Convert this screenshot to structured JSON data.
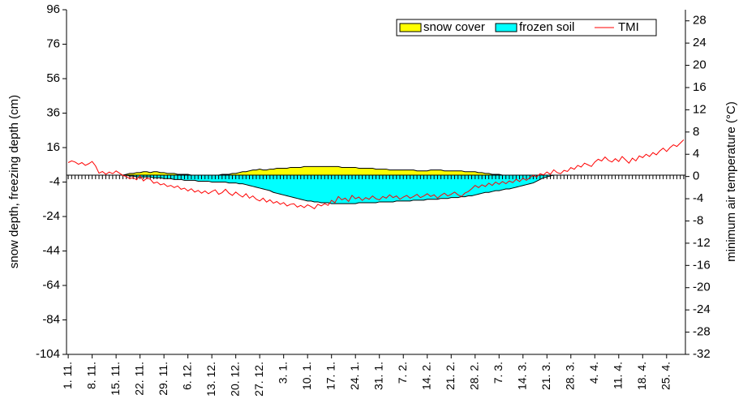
{
  "chart_data": {
    "type": "area",
    "y_label": "snow depth, freezing depth (cm)",
    "y2_label": "minimum air temperature (°C)",
    "ylim": [
      -104,
      96
    ],
    "yticks": [
      -104,
      -84,
      -64,
      -44,
      -24,
      -4,
      16,
      36,
      56,
      76,
      96
    ],
    "y2lim": [
      -32,
      30
    ],
    "y2ticks": [
      -32,
      -28,
      -24,
      -20,
      -16,
      -12,
      -8,
      -4,
      0,
      4,
      8,
      12,
      16,
      20,
      24,
      28
    ],
    "legend": "top-right",
    "categories": [
      "1. 11.",
      null,
      null,
      null,
      null,
      null,
      null,
      "8. 11.",
      null,
      null,
      null,
      null,
      null,
      null,
      "15. 11.",
      null,
      null,
      null,
      null,
      null,
      null,
      "22. 11.",
      null,
      null,
      null,
      null,
      null,
      null,
      "29. 11.",
      null,
      null,
      null,
      null,
      null,
      null,
      "6. 12.",
      null,
      null,
      null,
      null,
      null,
      null,
      "13. 12.",
      null,
      null,
      null,
      null,
      null,
      null,
      "20. 12.",
      null,
      null,
      null,
      null,
      null,
      null,
      "27. 12.",
      null,
      null,
      null,
      null,
      null,
      null,
      "3. 1.",
      null,
      null,
      null,
      null,
      null,
      null,
      "10. 1.",
      null,
      null,
      null,
      null,
      null,
      null,
      "17. 1.",
      null,
      null,
      null,
      null,
      null,
      null,
      "24. 1.",
      null,
      null,
      null,
      null,
      null,
      null,
      "31. 1.",
      null,
      null,
      null,
      null,
      null,
      null,
      "7. 2.",
      null,
      null,
      null,
      null,
      null,
      null,
      "14. 2.",
      null,
      null,
      null,
      null,
      null,
      null,
      "21. 2.",
      null,
      null,
      null,
      null,
      null,
      null,
      "28. 2.",
      null,
      null,
      null,
      null,
      null,
      null,
      "7. 3.",
      null,
      null,
      null,
      null,
      null,
      null,
      "14. 3.",
      null,
      null,
      null,
      null,
      null,
      null,
      "21. 3.",
      null,
      null,
      null,
      null,
      null,
      null,
      "28. 3.",
      null,
      null,
      null,
      null,
      null,
      null,
      "4. 4.",
      null,
      null,
      null,
      null,
      null,
      null,
      "11. 4.",
      null,
      null,
      null,
      null,
      null,
      null,
      "18. 4.",
      null,
      null,
      null,
      null,
      null,
      null,
      "25. 4.",
      null,
      null,
      null,
      null,
      null
    ],
    "series": [
      {
        "name": "snow cover",
        "type": "area",
        "color": "#ffff00",
        "values": [
          0,
          0,
          0,
          0,
          0,
          0,
          0,
          0,
          0,
          0,
          0,
          0,
          0,
          0,
          0,
          0,
          0,
          0.5,
          1,
          1,
          1.5,
          1.5,
          2,
          2,
          1.5,
          2,
          2,
          1.5,
          1.5,
          1,
          1,
          1,
          0.5,
          0.5,
          0.5,
          0.5,
          0,
          0,
          0,
          0,
          0,
          0,
          0,
          0,
          0,
          0.5,
          0.5,
          0.5,
          1,
          1,
          1.5,
          2,
          2,
          2.5,
          3,
          3,
          3.5,
          3,
          3,
          3.5,
          3.5,
          4,
          4,
          4,
          4,
          4.5,
          4.5,
          4.5,
          4.5,
          5,
          5,
          5,
          5,
          5,
          5,
          5,
          5,
          5,
          5,
          5,
          4.5,
          4.5,
          4.5,
          4.5,
          4.5,
          4,
          4,
          4,
          4,
          4,
          3.5,
          3.5,
          3.5,
          3.5,
          3,
          3,
          3,
          3,
          3,
          3,
          3,
          3,
          2.5,
          2.5,
          2.5,
          2.5,
          3,
          3,
          3,
          3,
          2.5,
          2.5,
          2.5,
          2.5,
          2.5,
          2.5,
          2,
          2,
          2,
          2,
          1.5,
          1.5,
          1,
          1,
          0.5,
          0.5,
          0.5,
          0,
          0,
          0,
          0,
          0,
          0,
          0,
          0,
          0,
          0,
          0,
          0,
          0,
          0,
          0,
          0,
          0,
          0,
          0,
          0,
          0,
          0,
          0,
          0,
          0,
          0,
          0,
          0,
          0,
          0,
          0,
          0,
          0,
          0,
          0,
          0,
          0,
          0,
          0,
          0,
          0,
          0,
          0,
          0,
          0,
          0,
          0,
          0,
          0,
          0,
          0,
          0,
          0,
          0
        ]
      },
      {
        "name": "frozen soil",
        "type": "area",
        "color": "#00ffff",
        "values": [
          0,
          0,
          0,
          0,
          0,
          0,
          0,
          0,
          0,
          0,
          0,
          0,
          0,
          0,
          0,
          0,
          0,
          0,
          -0.5,
          -0.5,
          -1,
          -1,
          -1,
          -1,
          -1,
          -1.5,
          -1.5,
          -1.5,
          -2,
          -2,
          -2,
          -2.5,
          -2.5,
          -2.5,
          -3,
          -3,
          -3,
          -3,
          -3.5,
          -3.5,
          -3.5,
          -3.5,
          -4,
          -4,
          -4,
          -4,
          -4,
          -4.5,
          -4.5,
          -4.5,
          -5,
          -5,
          -5.5,
          -6,
          -6.5,
          -7,
          -7.5,
          -8,
          -8.5,
          -9,
          -10,
          -10.5,
          -11,
          -11.5,
          -12,
          -12.5,
          -13,
          -13.5,
          -14,
          -14.5,
          -15,
          -15,
          -15.5,
          -15.5,
          -16,
          -16,
          -16,
          -16.5,
          -16.5,
          -16.5,
          -16.5,
          -16.5,
          -16.5,
          -16.5,
          -16.5,
          -16,
          -16,
          -16,
          -16,
          -16,
          -16,
          -15.5,
          -15.5,
          -15.5,
          -15.5,
          -15.5,
          -15,
          -15,
          -15,
          -15,
          -15,
          -14.5,
          -14.5,
          -14.5,
          -14.5,
          -14,
          -14,
          -14,
          -14,
          -13.5,
          -13.5,
          -13.5,
          -13,
          -13,
          -13,
          -12.5,
          -12.5,
          -12,
          -12,
          -11.5,
          -11,
          -10.5,
          -10,
          -10,
          -9.5,
          -9,
          -9,
          -8.5,
          -8,
          -8,
          -7.5,
          -7,
          -6.5,
          -6,
          -5.5,
          -5,
          -4.5,
          -3.5,
          -2.5,
          -1.5,
          -1,
          -0.5,
          0,
          0,
          0,
          0,
          0,
          0,
          0,
          0,
          0,
          0,
          0,
          0,
          0,
          0,
          0,
          0,
          0,
          0,
          0,
          0,
          0,
          0,
          0,
          0,
          0,
          0,
          0,
          0,
          0,
          0,
          0,
          0,
          0,
          0,
          0,
          0,
          0,
          0,
          0
        ]
      },
      {
        "name": "TMI",
        "type": "line",
        "axis": "y2",
        "color": "#ff0000",
        "values": [
          2.5,
          2.8,
          2.6,
          2.2,
          2.5,
          2.0,
          2.3,
          2.7,
          1.9,
          0.6,
          0.9,
          0.4,
          0.8,
          0.5,
          1.0,
          0.6,
          0.2,
          0.0,
          -0.4,
          -0.2,
          -0.6,
          0.1,
          -0.8,
          -0.3,
          -0.5,
          -1.2,
          -1.0,
          -1.5,
          -1.3,
          -1.8,
          -1.6,
          -2.0,
          -1.7,
          -2.3,
          -2.1,
          -2.6,
          -2.2,
          -2.8,
          -2.5,
          -3.0,
          -2.6,
          -3.1,
          -2.7,
          -2.4,
          -3.2,
          -2.9,
          -2.3,
          -3.0,
          -3.4,
          -2.8,
          -3.3,
          -3.7,
          -3.1,
          -3.9,
          -3.5,
          -4.1,
          -4.4,
          -3.9,
          -4.6,
          -4.2,
          -4.8,
          -4.5,
          -5.0,
          -4.7,
          -5.3,
          -5.0,
          -4.9,
          -5.5,
          -5.2,
          -5.6,
          -5.1,
          -5.4,
          -5.8,
          -5.0,
          -5.3,
          -4.9,
          -5.2,
          -4.3,
          -4.7,
          -3.6,
          -4.2,
          -3.9,
          -4.5,
          -3.4,
          -4.0,
          -3.7,
          -4.3,
          -3.8,
          -4.1,
          -3.5,
          -4.0,
          -4.2,
          -3.6,
          -3.9,
          -3.3,
          -3.8,
          -3.5,
          -4.1,
          -3.7,
          -3.4,
          -3.9,
          -3.6,
          -3.2,
          -3.8,
          -3.5,
          -3.1,
          -3.6,
          -3.3,
          -3.9,
          -3.4,
          -3.0,
          -3.5,
          -3.2,
          -2.8,
          -3.3,
          -3.6,
          -3.0,
          -2.7,
          -2.2,
          -1.6,
          -2.0,
          -1.5,
          -1.8,
          -1.2,
          -1.6,
          -1.0,
          -1.4,
          -0.9,
          -1.3,
          -0.8,
          -1.1,
          -0.5,
          -0.9,
          -0.3,
          -0.7,
          -0.2,
          0.2,
          -0.1,
          0.5,
          0.3,
          0.8,
          0.4,
          1.2,
          0.7,
          0.5,
          1.1,
          0.9,
          1.6,
          1.3,
          2.0,
          1.7,
          2.4,
          2.1,
          1.8,
          2.6,
          3.1,
          2.8,
          3.5,
          2.9,
          2.6,
          3.2,
          2.7,
          3.6,
          3.0,
          2.4,
          3.3,
          2.8,
          3.7,
          3.4,
          4.0,
          3.6,
          4.3,
          3.9,
          4.6,
          5.1,
          4.5,
          5.2,
          5.7,
          5.4,
          6.0,
          6.6
        ]
      }
    ]
  }
}
